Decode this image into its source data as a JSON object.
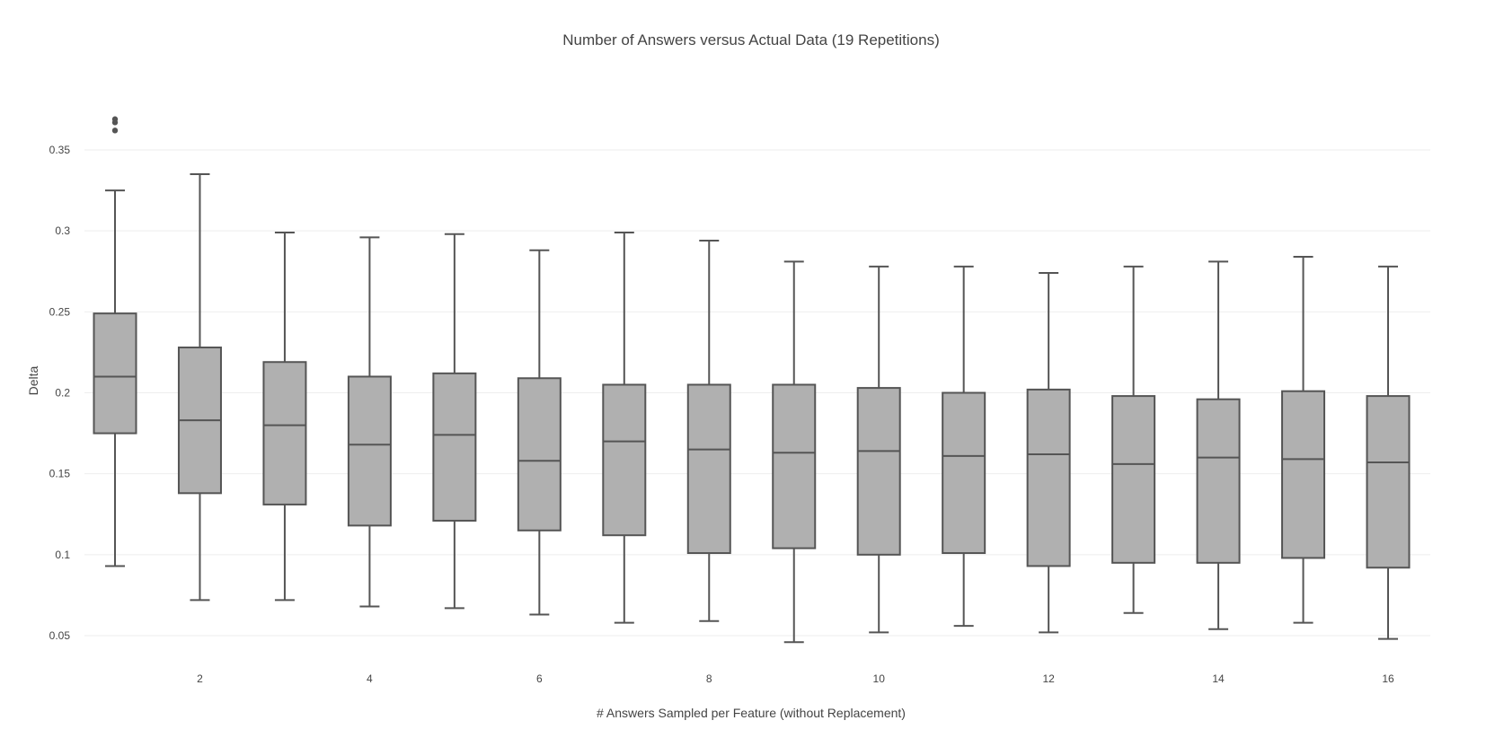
{
  "chart_data": {
    "type": "box",
    "title": "Number of Answers versus Actual Data (19 Repetitions)",
    "xlabel": "# Answers Sampled per Feature (without Replacement)",
    "ylabel": "Delta",
    "x_ticks": [
      2,
      4,
      6,
      8,
      10,
      12,
      14,
      16
    ],
    "y_ticks": [
      0.05,
      0.1,
      0.15,
      0.2,
      0.25,
      0.3,
      0.35
    ],
    "y_tick_labels": [
      "0.05",
      "0.1",
      "0.15",
      "0.2",
      "0.25",
      "0.3",
      "0.35"
    ],
    "xlim": [
      0,
      17
    ],
    "ylim": [
      0.035,
      0.39
    ],
    "grid": true,
    "colors": {
      "box_fill": "#b0b0b0",
      "box_line": "#555555",
      "grid": "#eeeeee",
      "text": "#444444"
    },
    "boxes": [
      {
        "x": 1,
        "min": 0.093,
        "q1": 0.175,
        "median": 0.21,
        "q3": 0.249,
        "max": 0.325,
        "outliers": [
          0.369,
          0.367,
          0.362
        ]
      },
      {
        "x": 2,
        "min": 0.072,
        "q1": 0.138,
        "median": 0.183,
        "q3": 0.228,
        "max": 0.335,
        "outliers": []
      },
      {
        "x": 3,
        "min": 0.072,
        "q1": 0.131,
        "median": 0.18,
        "q3": 0.219,
        "max": 0.299,
        "outliers": []
      },
      {
        "x": 4,
        "min": 0.068,
        "q1": 0.118,
        "median": 0.168,
        "q3": 0.21,
        "max": 0.296,
        "outliers": []
      },
      {
        "x": 5,
        "min": 0.067,
        "q1": 0.121,
        "median": 0.174,
        "q3": 0.212,
        "max": 0.298,
        "outliers": []
      },
      {
        "x": 6,
        "min": 0.063,
        "q1": 0.115,
        "median": 0.158,
        "q3": 0.209,
        "max": 0.288,
        "outliers": []
      },
      {
        "x": 7,
        "min": 0.058,
        "q1": 0.112,
        "median": 0.17,
        "q3": 0.205,
        "max": 0.299,
        "outliers": []
      },
      {
        "x": 8,
        "min": 0.059,
        "q1": 0.101,
        "median": 0.165,
        "q3": 0.205,
        "max": 0.294,
        "outliers": []
      },
      {
        "x": 9,
        "min": 0.046,
        "q1": 0.104,
        "median": 0.163,
        "q3": 0.205,
        "max": 0.281,
        "outliers": []
      },
      {
        "x": 10,
        "min": 0.052,
        "q1": 0.1,
        "median": 0.164,
        "q3": 0.203,
        "max": 0.278,
        "outliers": []
      },
      {
        "x": 11,
        "min": 0.056,
        "q1": 0.101,
        "median": 0.161,
        "q3": 0.2,
        "max": 0.278,
        "outliers": []
      },
      {
        "x": 12,
        "min": 0.052,
        "q1": 0.093,
        "median": 0.162,
        "q3": 0.202,
        "max": 0.274,
        "outliers": []
      },
      {
        "x": 13,
        "min": 0.064,
        "q1": 0.095,
        "median": 0.156,
        "q3": 0.198,
        "max": 0.278,
        "outliers": []
      },
      {
        "x": 14,
        "min": 0.054,
        "q1": 0.095,
        "median": 0.16,
        "q3": 0.196,
        "max": 0.281,
        "outliers": []
      },
      {
        "x": 15,
        "min": 0.058,
        "q1": 0.098,
        "median": 0.159,
        "q3": 0.201,
        "max": 0.284,
        "outliers": []
      },
      {
        "x": 16,
        "min": 0.048,
        "q1": 0.092,
        "median": 0.157,
        "q3": 0.198,
        "max": 0.278,
        "outliers": []
      }
    ]
  }
}
